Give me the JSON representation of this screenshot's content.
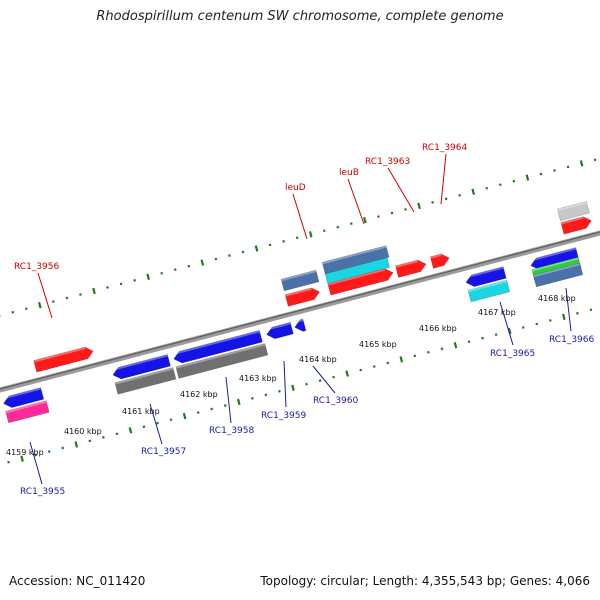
{
  "title": "Rhodospirillum centenum SW chromosome, complete genome",
  "footer": {
    "accession": "Accession: NC_011420",
    "topology": "Topology: circular; Length: 4,355,543 bp; Genes: 4,066"
  },
  "colors": {
    "backbone": "#7f7f7f",
    "tick": "#1f7a1f",
    "red_label": "#cc0000",
    "blue_label": "#1a1aa6",
    "gene_red": "#ff1a1a",
    "gene_blue": "#1414e6",
    "gene_gray": "#707070",
    "gene_light_gray": "#c8c8c8",
    "gene_steel": "#4a72a8",
    "gene_cyan": "#1ad6e0",
    "gene_pink": "#ff2a9a",
    "gene_green": "#2ecc40"
  },
  "scale": {
    "unit": "kbp",
    "ticks": [
      "4159 kbp",
      "4160 kbp",
      "4161 kbp",
      "4162 kbp",
      "4163 kbp",
      "4164 kbp",
      "4165 kbp",
      "4166 kbp",
      "4167 kbp",
      "4168 kbp"
    ]
  },
  "labels": {
    "forward": [
      "RC1_3956",
      "leuD",
      "leuB",
      "RC1_3963",
      "RC1_3964"
    ],
    "reverse": [
      "RC1_3955",
      "RC1_3957",
      "RC1_3958",
      "RC1_3959",
      "RC1_3960",
      "RC1_3965",
      "RC1_3966"
    ]
  }
}
